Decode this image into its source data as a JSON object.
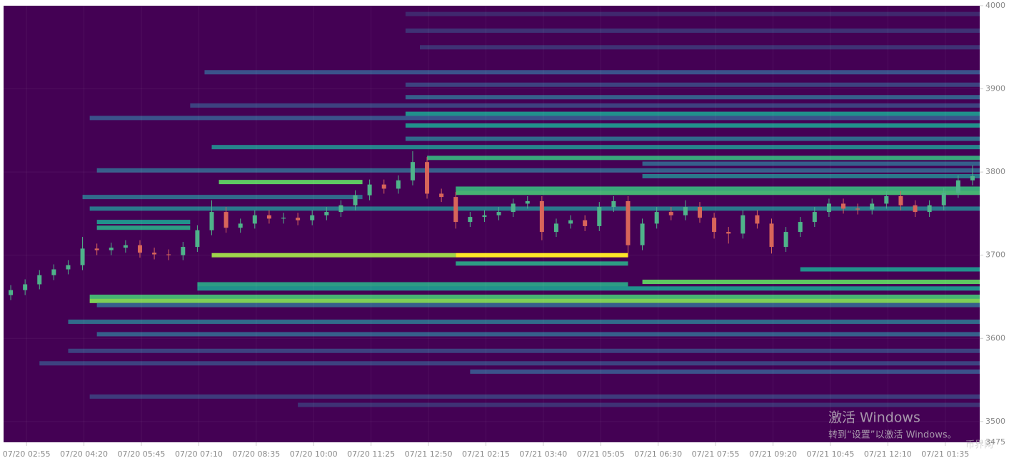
{
  "chart_data": {
    "type": "heatmap-candlestick",
    "xlim": [
      -0.5,
      67.5
    ],
    "xticks": [
      {
        "value": 1.1,
        "label": "07/20 02:55"
      },
      {
        "value": 5.1,
        "label": "07/20 04:20"
      },
      {
        "value": 9.1,
        "label": "07/20 05:45"
      },
      {
        "value": 13.1,
        "label": "07/20 07:10"
      },
      {
        "value": 17.1,
        "label": "07/20 08:35"
      },
      {
        "value": 21.1,
        "label": "07/20 10:00"
      },
      {
        "value": 25.1,
        "label": "07/20 11:25"
      },
      {
        "value": 29.1,
        "label": "07/21 12:50"
      },
      {
        "value": 33.1,
        "label": "07/21 02:15"
      },
      {
        "value": 37.1,
        "label": "07/21 03:40"
      },
      {
        "value": 41.1,
        "label": "07/21 05:05"
      },
      {
        "value": 45.1,
        "label": "07/21 06:30"
      },
      {
        "value": 49.1,
        "label": "07/21 07:55"
      },
      {
        "value": 53.1,
        "label": "07/21 09:20"
      },
      {
        "value": 57.1,
        "label": "07/21 10:45"
      },
      {
        "value": 61.1,
        "label": "07/21 12:10"
      },
      {
        "value": 65.1,
        "label": "07/21 01:35"
      }
    ],
    "ylim": [
      3475,
      4000
    ],
    "yticks": [
      3475,
      3500,
      3600,
      3700,
      3800,
      3900,
      4000
    ],
    "grid": true,
    "background": "#440154",
    "up_color": "#4fb38a",
    "down_color": "#d8655a",
    "x": [
      0,
      1,
      2,
      3,
      4,
      5,
      6,
      7,
      8,
      9,
      10,
      11,
      12,
      13,
      14,
      15,
      16,
      17,
      18,
      19,
      20,
      21,
      22,
      23,
      24,
      25,
      26,
      27,
      28,
      29,
      30,
      31,
      32,
      33,
      34,
      35,
      36,
      37,
      38,
      39,
      40,
      41,
      42,
      43,
      44,
      45,
      46,
      47,
      48,
      49,
      50,
      51,
      52,
      53,
      54,
      55,
      56,
      57,
      58,
      59,
      60,
      61,
      62,
      63,
      64,
      65,
      66,
      67
    ],
    "open": [
      3652,
      3658,
      3665,
      3676,
      3683,
      3688,
      3708,
      3706,
      3709,
      3712,
      3703,
      3701,
      3700,
      3710,
      3730,
      3752,
      3733,
      3738,
      3748,
      3744,
      3745,
      3742,
      3748,
      3752,
      3760,
      3772,
      3785,
      3780,
      3790,
      3812,
      3774,
      3770,
      3740,
      3746,
      3748,
      3752,
      3762,
      3765,
      3728,
      3738,
      3742,
      3735,
      3758,
      3765,
      3712,
      3738,
      3752,
      3748,
      3758,
      3745,
      3728,
      3726,
      3748,
      3738,
      3710,
      3728,
      3740,
      3752,
      3762,
      3756,
      3755,
      3762,
      3771,
      3760,
      3752,
      3760,
      3775,
      3790
    ],
    "high": [
      3664,
      3671,
      3682,
      3689,
      3694,
      3722,
      3714,
      3715,
      3718,
      3718,
      3709,
      3707,
      3716,
      3736,
      3766,
      3758,
      3744,
      3754,
      3754,
      3751,
      3751,
      3754,
      3758,
      3766,
      3778,
      3791,
      3791,
      3796,
      3825,
      3818,
      3780,
      3776,
      3752,
      3754,
      3758,
      3768,
      3771,
      3771,
      3744,
      3748,
      3748,
      3764,
      3771,
      3771,
      3744,
      3758,
      3758,
      3766,
      3764,
      3751,
      3734,
      3754,
      3754,
      3744,
      3734,
      3746,
      3758,
      3768,
      3768,
      3762,
      3768,
      3777,
      3777,
      3766,
      3766,
      3781,
      3796,
      3808
    ],
    "low": [
      3646,
      3652,
      3659,
      3670,
      3677,
      3682,
      3700,
      3700,
      3703,
      3697,
      3695,
      3694,
      3694,
      3704,
      3724,
      3727,
      3727,
      3732,
      3738,
      3738,
      3736,
      3736,
      3742,
      3746,
      3754,
      3766,
      3774,
      3774,
      3784,
      3768,
      3764,
      3732,
      3734,
      3740,
      3742,
      3746,
      3756,
      3718,
      3722,
      3732,
      3729,
      3729,
      3752,
      3698,
      3706,
      3732,
      3742,
      3742,
      3739,
      3720,
      3714,
      3720,
      3732,
      3702,
      3704,
      3722,
      3734,
      3746,
      3750,
      3749,
      3749,
      3756,
      3754,
      3746,
      3746,
      3754,
      3769,
      3784
    ],
    "close": [
      3658,
      3665,
      3676,
      3683,
      3688,
      3708,
      3706,
      3709,
      3712,
      3703,
      3701,
      3700,
      3710,
      3730,
      3752,
      3733,
      3738,
      3748,
      3744,
      3745,
      3742,
      3748,
      3752,
      3760,
      3772,
      3785,
      3780,
      3790,
      3812,
      3774,
      3770,
      3740,
      3746,
      3748,
      3752,
      3762,
      3765,
      3728,
      3738,
      3742,
      3735,
      3758,
      3765,
      3712,
      3738,
      3752,
      3748,
      3758,
      3745,
      3728,
      3726,
      3748,
      3738,
      3710,
      3728,
      3740,
      3752,
      3762,
      3756,
      3755,
      3762,
      3771,
      3760,
      3752,
      3760,
      3775,
      3790,
      3795
    ],
    "bands": [
      {
        "price": 3990,
        "start": 27.5,
        "end": 67.5,
        "intensity": 0.12
      },
      {
        "price": 3970,
        "start": 27.5,
        "end": 67.5,
        "intensity": 0.15
      },
      {
        "price": 3950,
        "start": 28.5,
        "end": 67.5,
        "intensity": 0.15
      },
      {
        "price": 3920,
        "start": 13.5,
        "end": 67.5,
        "intensity": 0.25
      },
      {
        "price": 3905,
        "start": 27.5,
        "end": 67.5,
        "intensity": 0.2
      },
      {
        "price": 3890,
        "start": 27.5,
        "end": 67.5,
        "intensity": 0.3
      },
      {
        "price": 3880,
        "start": 12.5,
        "end": 67.5,
        "intensity": 0.2
      },
      {
        "price": 3870,
        "start": 27.5,
        "end": 67.5,
        "intensity": 0.5
      },
      {
        "price": 3865,
        "start": 5.5,
        "end": 67.5,
        "intensity": 0.25
      },
      {
        "price": 3856,
        "start": 27.5,
        "end": 67.5,
        "intensity": 0.5
      },
      {
        "price": 3840,
        "start": 27.5,
        "end": 67.5,
        "intensity": 0.35
      },
      {
        "price": 3830,
        "start": 14,
        "end": 67.5,
        "intensity": 0.45
      },
      {
        "price": 3817,
        "start": 29,
        "end": 67.5,
        "intensity": 0.6
      },
      {
        "price": 3810,
        "start": 44,
        "end": 67.5,
        "intensity": 0.3
      },
      {
        "price": 3802,
        "start": 6,
        "end": 67.5,
        "intensity": 0.3
      },
      {
        "price": 3795,
        "start": 44,
        "end": 67.5,
        "intensity": 0.4
      },
      {
        "price": 3788,
        "start": 14.5,
        "end": 24.5,
        "intensity": 0.75
      },
      {
        "price": 3780,
        "start": 31,
        "end": 67.5,
        "intensity": 0.6
      },
      {
        "price": 3775,
        "start": 31,
        "end": 67.5,
        "intensity": 0.65
      },
      {
        "price": 3770,
        "start": 5,
        "end": 24.5,
        "intensity": 0.35
      },
      {
        "price": 3756,
        "start": 5.5,
        "end": 67.5,
        "intensity": 0.4
      },
      {
        "price": 3740,
        "start": 6,
        "end": 12.5,
        "intensity": 0.5
      },
      {
        "price": 3733,
        "start": 6,
        "end": 12.5,
        "intensity": 0.55
      },
      {
        "price": 3700,
        "start": 14,
        "end": 31,
        "intensity": 0.85
      },
      {
        "price": 3700,
        "start": 31,
        "end": 43,
        "intensity": 1
      },
      {
        "price": 3690,
        "start": 31,
        "end": 43,
        "intensity": 0.55
      },
      {
        "price": 3683,
        "start": 55,
        "end": 67.5,
        "intensity": 0.5
      },
      {
        "price": 3668,
        "start": 44,
        "end": 67.5,
        "intensity": 0.75
      },
      {
        "price": 3665,
        "start": 13,
        "end": 43,
        "intensity": 0.55
      },
      {
        "price": 3660,
        "start": 13,
        "end": 67.5,
        "intensity": 0.5
      },
      {
        "price": 3650,
        "start": 5.5,
        "end": 67.5,
        "intensity": 0.65
      },
      {
        "price": 3645,
        "start": 5.5,
        "end": 67.5,
        "intensity": 0.8
      },
      {
        "price": 3640,
        "start": 6,
        "end": 67.5,
        "intensity": 0.3
      },
      {
        "price": 3620,
        "start": 4,
        "end": 67.5,
        "intensity": 0.35
      },
      {
        "price": 3605,
        "start": 6,
        "end": 67.5,
        "intensity": 0.3
      },
      {
        "price": 3585,
        "start": 4,
        "end": 67.5,
        "intensity": 0.2
      },
      {
        "price": 3570,
        "start": 2,
        "end": 67.5,
        "intensity": 0.2
      },
      {
        "price": 3560,
        "start": 32,
        "end": 67.5,
        "intensity": 0.25
      },
      {
        "price": 3530,
        "start": 5.5,
        "end": 67.5,
        "intensity": 0.18
      },
      {
        "price": 3520,
        "start": 20,
        "end": 67.5,
        "intensity": 0.15
      }
    ]
  },
  "watermark": {
    "title": "激活 Windows",
    "subtitle": "转到“设置”以激活 Windows。"
  },
  "logo": "币界网"
}
